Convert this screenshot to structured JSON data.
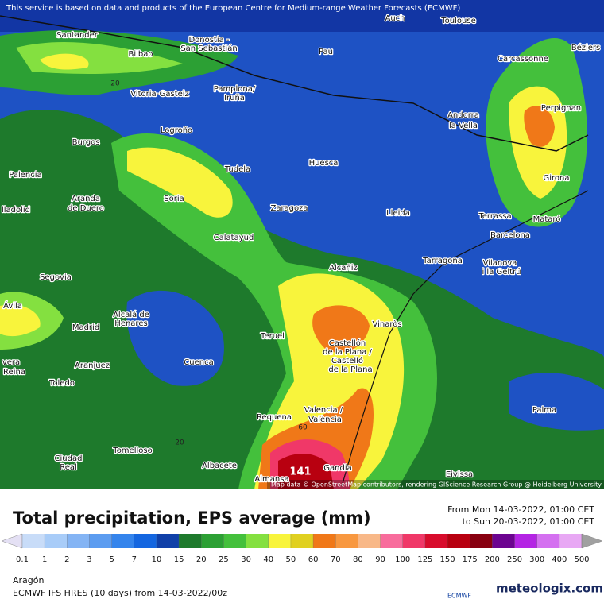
{
  "header": {
    "banner": "This service is based on data and products of the European Centre for Medium-range Weather Forecasts (ECMWF)"
  },
  "map": {
    "attribution": "Map data © OpenStreetMap contributors, rendering GIScience Research Group @ Heidelberg University",
    "cities": [
      "Auch",
      "Toulouse",
      "Santander",
      "Donostia -",
      "San Sebastián",
      "Bilbao",
      "Pau",
      "Carcassonne",
      "Béziers",
      "Vitoria-Gasteiz",
      "Pamplona/",
      "Iruña",
      "Andorra",
      "la Vella",
      "Perpignan",
      "Logroño",
      "Burgos",
      "Huesca",
      "Tudela",
      "Girona",
      "Palencia",
      "Aranda",
      "de Duero",
      "Soria",
      "Zaragoza",
      "Lleida",
      "Terrassa",
      "Mataró",
      "lladolid",
      "Barcelona",
      "Calatayud",
      "Tarragona",
      "Vilanova",
      "i la Geltrú",
      "Segovia",
      "Alcañiz",
      "Ávila",
      "Alcalá de",
      "Henares",
      "Madrid",
      "Vinaròs",
      "Teruel",
      "Castellón",
      "de la Plana /",
      "Castelló",
      "de la Plana",
      "Cuenca",
      "vera",
      "Reina",
      "Aranjuez",
      "Toledo",
      "Palma",
      "Valencia /",
      "València",
      "Requena",
      "Tomelloso",
      "Ciudad",
      "Real",
      "Albacete",
      "Eivissa",
      "Gandia",
      "Almansa"
    ],
    "contours": [
      "20",
      "20",
      "60",
      "141"
    ]
  },
  "legend": {
    "title": "Total precipitation, EPS average (mm)",
    "from": "From Mon 14-03-2022, 01:00 CET",
    "to": "to Sun 20-03-2022, 01:00 CET",
    "ticks": [
      0.1,
      1,
      2,
      3,
      5,
      7,
      10,
      15,
      20,
      25,
      30,
      40,
      50,
      60,
      70,
      80,
      90,
      100,
      125,
      150,
      175,
      200,
      250,
      300,
      400,
      500
    ],
    "colors": [
      "#e4e0f4",
      "#c8dcf8",
      "#a8ccf8",
      "#84b4f4",
      "#5c9cf0",
      "#3484ec",
      "#1466e0",
      "#1040a8",
      "#1e7a2c",
      "#2ca034",
      "#44c03c",
      "#84e040",
      "#f8f43c",
      "#e0d020",
      "#f07818",
      "#f89840",
      "#f8b888",
      "#f86c9c",
      "#f03868",
      "#d80c2c",
      "#b80010",
      "#880010",
      "#6c0490",
      "#b424e4",
      "#d470f0",
      "#e8a8f4",
      "#f4d8f8",
      "#d8d8d8"
    ]
  },
  "footer": {
    "region": "Aragón",
    "model": "ECMWF IFS HRES (10 days) from 14-03-2022/00z",
    "logo1": "ECMWF",
    "logo2": "meteologix.com"
  }
}
